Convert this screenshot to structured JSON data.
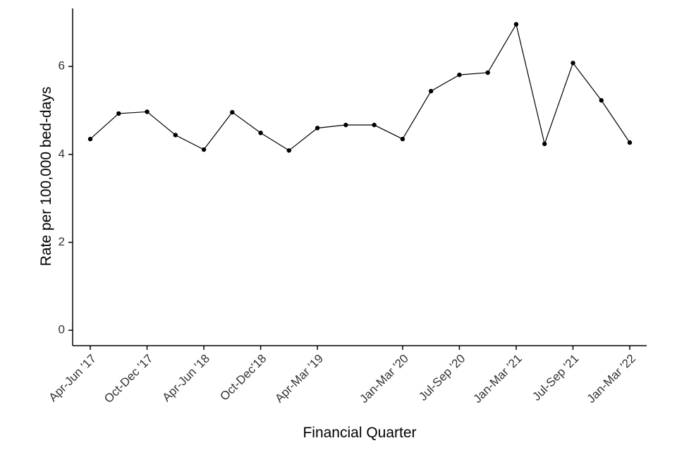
{
  "chart_data": {
    "type": "line",
    "x_label": "Financial Quarter",
    "y_label": "Rate per 100,000 bed-days",
    "categories": [
      "Apr-Jun '17",
      null,
      "Oct-Dec '17",
      null,
      "Apr-Jun '18",
      null,
      "Oct-Dec'18",
      null,
      "Apr-Mar '19",
      null,
      null,
      "Jan-Mar '20",
      null,
      "Jul-Sep '20",
      null,
      "Jan-Mar '21",
      null,
      "Jul-Sep '21",
      null,
      "Jan-Mar '22"
    ],
    "series": [
      {
        "color": "#000000",
        "values": [
          4.35,
          4.93,
          4.97,
          4.44,
          4.11,
          4.96,
          4.49,
          4.09,
          4.6,
          4.67,
          4.67,
          4.35,
          5.44,
          5.81,
          5.86,
          6.96,
          4.24,
          6.08,
          5.23,
          4.27
        ]
      }
    ],
    "ylim": [
      -0.35,
      7.32
    ],
    "yticks": [
      0,
      2,
      4,
      6
    ],
    "grid": false
  }
}
